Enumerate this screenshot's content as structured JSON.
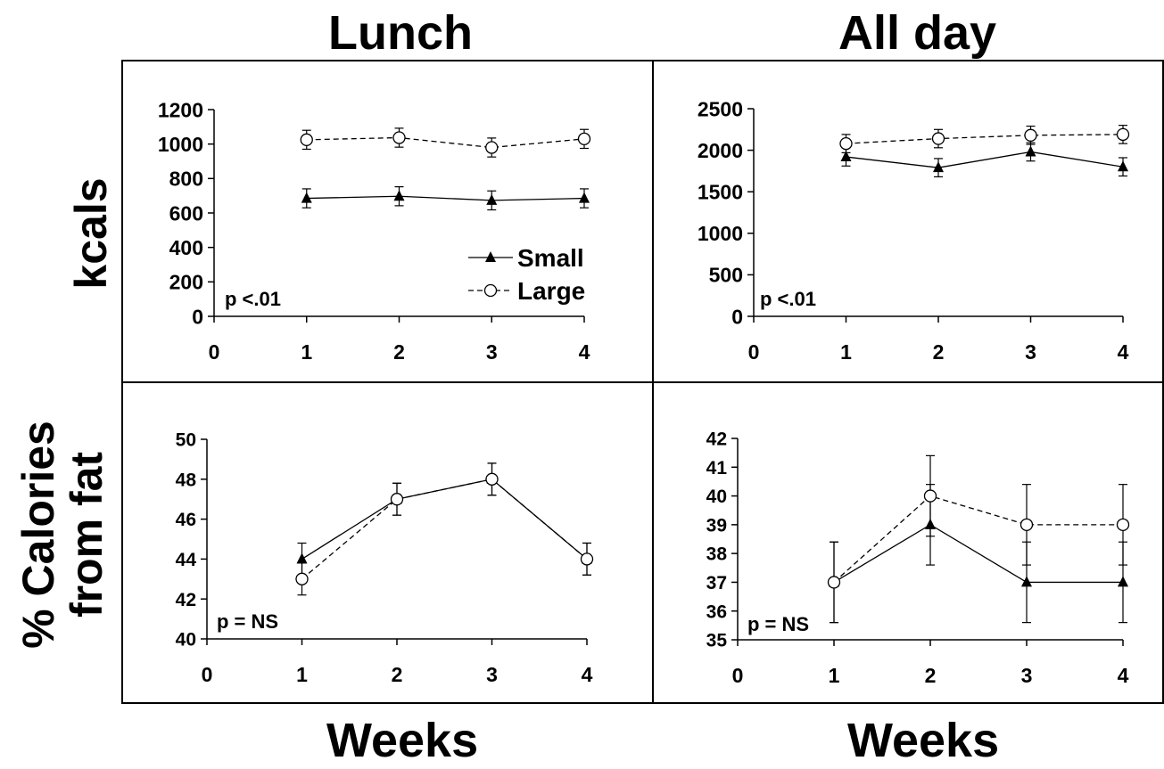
{
  "titles": {
    "col_left": "Lunch",
    "col_right": "All day",
    "row_top": "kcals",
    "row_bottom_line1": "% Calories",
    "row_bottom_line2": "from fat",
    "x_bottom_left": "Weeks",
    "x_bottom_right": "Weeks"
  },
  "legend": {
    "small": "Small",
    "large": "Large"
  },
  "chart_data": [
    {
      "id": "lunch_kcals",
      "type": "line",
      "title": "",
      "xlabel": "",
      "ylabel": "",
      "xlim": [
        0,
        4
      ],
      "ylim": [
        0,
        1200
      ],
      "xticks": [
        0,
        1,
        2,
        3,
        4
      ],
      "yticks": [
        0,
        200,
        400,
        600,
        800,
        1000,
        1200
      ],
      "x": [
        1,
        2,
        3,
        4
      ],
      "series": [
        {
          "name": "Small",
          "values": [
            685,
            697,
            673,
            685
          ],
          "errors": [
            55,
            55,
            55,
            55
          ],
          "marker": "triangle",
          "line": "solid"
        },
        {
          "name": "Large",
          "values": [
            1025,
            1037,
            980,
            1030
          ],
          "errors": [
            55,
            55,
            55,
            55
          ],
          "marker": "circle",
          "line": "dashed"
        }
      ],
      "annotation": "p <.01",
      "legend": "right"
    },
    {
      "id": "allday_kcals",
      "type": "line",
      "title": "",
      "xlabel": "",
      "ylabel": "",
      "xlim": [
        0,
        4
      ],
      "ylim": [
        0,
        2500
      ],
      "xticks": [
        0,
        1,
        2,
        3,
        4
      ],
      "yticks": [
        0,
        500,
        1000,
        1500,
        2000,
        2500
      ],
      "x": [
        1,
        2,
        3,
        4
      ],
      "series": [
        {
          "name": "Small",
          "values": [
            1920,
            1790,
            1980,
            1800
          ],
          "errors": [
            110,
            110,
            110,
            110
          ],
          "marker": "triangle",
          "line": "solid"
        },
        {
          "name": "Large",
          "values": [
            2080,
            2140,
            2180,
            2190
          ],
          "errors": [
            110,
            110,
            110,
            110
          ],
          "marker": "circle",
          "line": "dashed"
        }
      ],
      "annotation": "p <.01"
    },
    {
      "id": "lunch_fat",
      "type": "line",
      "title": "",
      "xlabel": "",
      "ylabel": "",
      "xlim": [
        0,
        4
      ],
      "ylim": [
        40,
        50
      ],
      "xticks": [
        0,
        1,
        2,
        3,
        4
      ],
      "yticks": [
        40,
        42,
        44,
        46,
        48,
        50
      ],
      "x": [
        1,
        2,
        3,
        4
      ],
      "series": [
        {
          "name": "Small",
          "values": [
            44,
            47,
            48,
            44
          ],
          "errors": [
            0.8,
            0.8,
            0.8,
            0.8
          ],
          "marker": "triangle",
          "line": "solid"
        },
        {
          "name": "Large",
          "values": [
            43,
            47,
            48,
            44
          ],
          "errors": [
            0.8,
            0.8,
            0.8,
            0.8
          ],
          "marker": "circle",
          "line": "dashed"
        }
      ],
      "annotation": "p = NS"
    },
    {
      "id": "allday_fat",
      "type": "line",
      "title": "",
      "xlabel": "",
      "ylabel": "",
      "xlim": [
        0,
        4
      ],
      "ylim": [
        35,
        42
      ],
      "xticks": [
        0,
        1,
        2,
        3,
        4
      ],
      "yticks": [
        35,
        36,
        37,
        38,
        39,
        40,
        41,
        42
      ],
      "x": [
        1,
        2,
        3,
        4
      ],
      "series": [
        {
          "name": "Small",
          "values": [
            37,
            39,
            37,
            37
          ],
          "errors": [
            1.4,
            1.4,
            1.4,
            1.4
          ],
          "marker": "triangle",
          "line": "solid"
        },
        {
          "name": "Large",
          "values": [
            37,
            40,
            39,
            39
          ],
          "errors": [
            1.4,
            1.4,
            1.4,
            1.4
          ],
          "marker": "circle",
          "line": "dashed"
        }
      ],
      "annotation": "p = NS"
    }
  ]
}
